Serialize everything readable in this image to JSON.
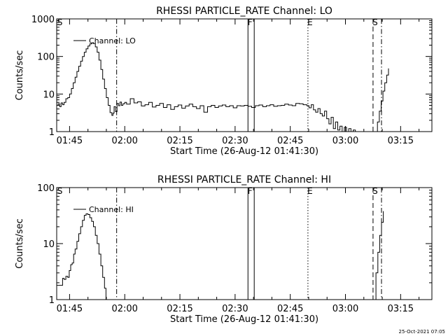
{
  "footer_timestamp": "25-Oct-2021 07:05",
  "chart_data": [
    {
      "type": "line",
      "title": "RHESSI PARTICLE_RATE Channel: LO",
      "xlabel": "Start Time (26-Aug-12 01:41:30)",
      "ylabel": "Counts/sec",
      "yscale": "log",
      "ylim": [
        1,
        1000
      ],
      "xlim_minutes": [
        0,
        102
      ],
      "x_ticks": [
        {
          "t": 3.5,
          "label": "01:45"
        },
        {
          "t": 18.5,
          "label": "02:00"
        },
        {
          "t": 33.5,
          "label": "02:15"
        },
        {
          "t": 48.5,
          "label": "02:30"
        },
        {
          "t": 63.5,
          "label": "02:45"
        },
        {
          "t": 78.5,
          "label": "03:00"
        },
        {
          "t": 93.5,
          "label": "03:15"
        }
      ],
      "y_ticks": [
        {
          "v": 1,
          "label": "1"
        },
        {
          "v": 10,
          "label": "10"
        },
        {
          "v": 100,
          "label": "100"
        },
        {
          "v": 1000,
          "label": "1000"
        }
      ],
      "legend": {
        "position": "top-left",
        "label": "Channel: LO"
      },
      "markers": [
        {
          "t": 0.3,
          "style": "none",
          "label": "S"
        },
        {
          "t": 16.3,
          "style": "dashdot",
          "label": ""
        },
        {
          "t": 52.0,
          "style": "solid",
          "label": "F"
        },
        {
          "t": 53.7,
          "style": "solid",
          "label": ""
        },
        {
          "t": 68.3,
          "style": "dotted",
          "label": "E"
        },
        {
          "t": 86.0,
          "style": "dashed",
          "label": "S"
        },
        {
          "t": 88.3,
          "style": "dashdot",
          "label": ""
        }
      ],
      "series": [
        {
          "x_minutes": [
            0,
            0.4,
            0.8,
            1.2,
            1.6,
            2,
            2.5,
            3,
            3.5,
            4,
            4.5,
            5,
            5.5,
            6,
            6.5,
            7,
            7.5,
            8,
            8.5,
            9,
            9.5,
            10,
            10.5,
            11,
            11.5,
            12,
            12.5,
            13,
            13.5,
            14,
            14.5,
            15,
            15.3,
            15.6,
            16,
            16.4,
            16.8,
            17.2,
            17.6,
            18,
            18.5,
            19,
            20,
            21,
            22,
            23,
            24,
            25,
            26,
            27,
            28,
            29,
            30,
            31,
            32,
            33,
            34,
            35,
            36,
            37,
            38,
            39,
            40,
            41,
            42,
            43,
            44,
            45,
            46,
            47,
            48,
            49,
            50,
            51,
            52,
            53,
            54,
            55,
            56,
            57,
            58,
            59,
            60,
            61,
            62,
            63,
            64,
            65,
            66,
            67,
            68,
            68.6,
            69.2,
            69.8,
            70.4,
            71.0,
            71.6,
            72.2,
            72.8,
            73.4,
            74.0,
            74.6,
            75.2,
            75.8,
            76.4,
            77.0,
            77.6,
            78.2,
            78.8,
            79.4,
            80.0,
            80.6,
            81.2
          ],
          "y": [
            5.0,
            5.5,
            4.6,
            5.8,
            5.2,
            6.0,
            7.5,
            8.0,
            10,
            14,
            20,
            28,
            40,
            55,
            75,
            100,
            130,
            160,
            190,
            215,
            230,
            220,
            180,
            130,
            80,
            45,
            25,
            14,
            8,
            5.0,
            3.2,
            2.7,
            3.1,
            4.6,
            3.4,
            5.6,
            4.9,
            6.1,
            5.0,
            5.5,
            6.0,
            5.4,
            7.5,
            5.8,
            6.2,
            4.8,
            5.2,
            6.0,
            4.5,
            5.0,
            5.6,
            4.4,
            5.2,
            3.9,
            4.6,
            5.1,
            4.2,
            4.8,
            5.4,
            4.6,
            4.1,
            4.9,
            3.3,
            4.6,
            5.0,
            4.4,
            4.8,
            5.1,
            4.6,
            4.9,
            4.3,
            4.9,
            4.8,
            5.0,
            4.7,
            4.4,
            4.9,
            5.1,
            4.6,
            4.9,
            5.2,
            4.7,
            4.9,
            5.0,
            5.4,
            5.1,
            4.9,
            5.6,
            5.5,
            5.2,
            4.9,
            4.3,
            5.2,
            3.8,
            3.3,
            4.1,
            3.0,
            2.6,
            3.5,
            2.2,
            1.6,
            2.4,
            1.2,
            1.8,
            1.1,
            1.4,
            1.0,
            1.3,
            1.0,
            1.2,
            1.0,
            1.1,
            1.0
          ],
          "x2_minutes": [
            86.7,
            87.2,
            87.7,
            88.2,
            88.7,
            89.2,
            89.7,
            90.2
          ],
          "y2": [
            1.0,
            1.8,
            3.5,
            6.5,
            12,
            20,
            32,
            48
          ]
        }
      ]
    },
    {
      "type": "line",
      "title": "RHESSI PARTICLE_RATE Channel: HI",
      "xlabel": "Start Time (26-Aug-12 01:41:30)",
      "ylabel": "Counts/sec",
      "yscale": "log",
      "ylim": [
        1,
        100
      ],
      "xlim_minutes": [
        0,
        102
      ],
      "x_ticks": [
        {
          "t": 3.5,
          "label": "01:45"
        },
        {
          "t": 18.5,
          "label": "02:00"
        },
        {
          "t": 33.5,
          "label": "02:15"
        },
        {
          "t": 48.5,
          "label": "02:30"
        },
        {
          "t": 63.5,
          "label": "02:45"
        },
        {
          "t": 78.5,
          "label": "03:00"
        },
        {
          "t": 93.5,
          "label": "03:15"
        }
      ],
      "y_ticks": [
        {
          "v": 1,
          "label": "1"
        },
        {
          "v": 10,
          "label": "10"
        },
        {
          "v": 100,
          "label": "100"
        }
      ],
      "legend": {
        "position": "top-left",
        "label": "Channel: HI"
      },
      "markers": [
        {
          "t": 0.3,
          "style": "none",
          "label": "S"
        },
        {
          "t": 16.3,
          "style": "dashdot",
          "label": ""
        },
        {
          "t": 52.0,
          "style": "solid",
          "label": "F"
        },
        {
          "t": 53.7,
          "style": "solid",
          "label": ""
        },
        {
          "t": 68.3,
          "style": "dotted",
          "label": "E"
        },
        {
          "t": 86.0,
          "style": "dashed",
          "label": "S"
        },
        {
          "t": 88.3,
          "style": "dashdot",
          "label": ""
        }
      ],
      "series": [
        {
          "x_minutes": [
            0,
            1,
            1.6,
            2,
            2.5,
            3,
            3.4,
            3.8,
            4.2,
            4.6,
            5,
            5.5,
            6,
            6.5,
            7,
            7.5,
            8,
            8.5,
            9,
            9.5,
            10,
            10.5,
            11,
            11.5,
            12,
            12.5,
            13,
            13.4
          ],
          "y": [
            1.8,
            1.8,
            2.4,
            2.3,
            2.6,
            2.5,
            3.3,
            4.2,
            4.5,
            6.5,
            8,
            11,
            15,
            20,
            26,
            32,
            34,
            33,
            29,
            25,
            20,
            14,
            10,
            6.5,
            4,
            2.5,
            1.6,
            1.0
          ],
          "x2_minutes": [
            86.3,
            86.8,
            87.3,
            87.8,
            88.3,
            88.8
          ],
          "y2": [
            1.0,
            3.0,
            7.0,
            14,
            24,
            38
          ]
        }
      ]
    }
  ]
}
